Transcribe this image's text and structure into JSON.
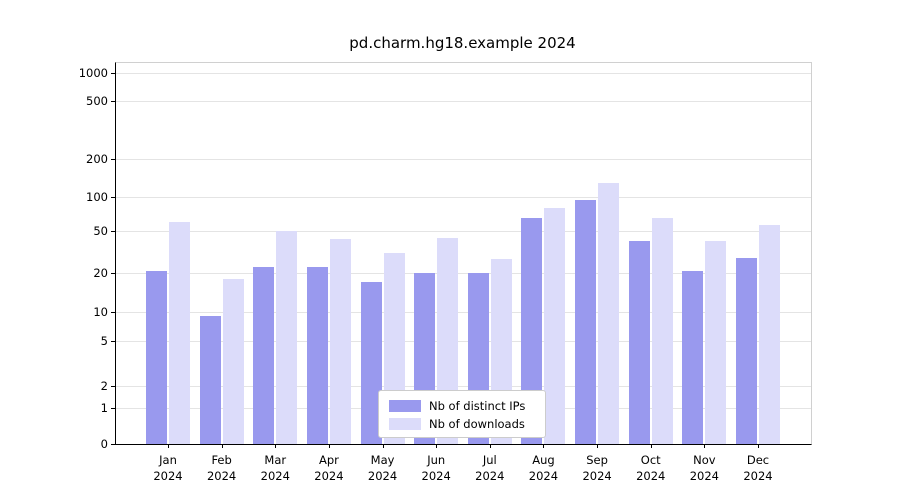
{
  "chart_data": {
    "type": "bar",
    "title": "pd.charm.hg18.example 2024",
    "months": [
      "Jan",
      "Feb",
      "Mar",
      "Apr",
      "May",
      "Jun",
      "Jul",
      "Aug",
      "Sep",
      "Oct",
      "Nov",
      "Dec"
    ],
    "year": "2024",
    "categories": [
      "Jan 2024",
      "Feb 2024",
      "Mar 2024",
      "Apr 2024",
      "May 2024",
      "Jun 2024",
      "Jul 2024",
      "Aug 2024",
      "Sep 2024",
      "Oct 2024",
      "Nov 2024",
      "Dec 2024"
    ],
    "series": [
      {
        "name": "Nb of distinct IPs",
        "color": "#9999ee",
        "values": [
          21,
          9,
          23,
          23,
          17,
          20,
          20,
          65,
          95,
          40,
          21,
          28
        ]
      },
      {
        "name": "Nb of downloads",
        "color": "#dcdcfa",
        "values": [
          60,
          18,
          50,
          42,
          31,
          43,
          27,
          80,
          130,
          65,
          40,
          57
        ]
      }
    ],
    "yticks": [
      0,
      1,
      2,
      5,
      10,
      20,
      50,
      100,
      200,
      500,
      1000
    ],
    "ylim": [
      0,
      1000
    ],
    "scale": "symlog",
    "xlabel": "",
    "ylabel": "",
    "grid": "horizontal",
    "legend_position": "lower center",
    "colors": {
      "grid": "#e4e4e4",
      "spine": "#000000",
      "legend_border": "#cccccc",
      "background": "#ffffff"
    }
  }
}
